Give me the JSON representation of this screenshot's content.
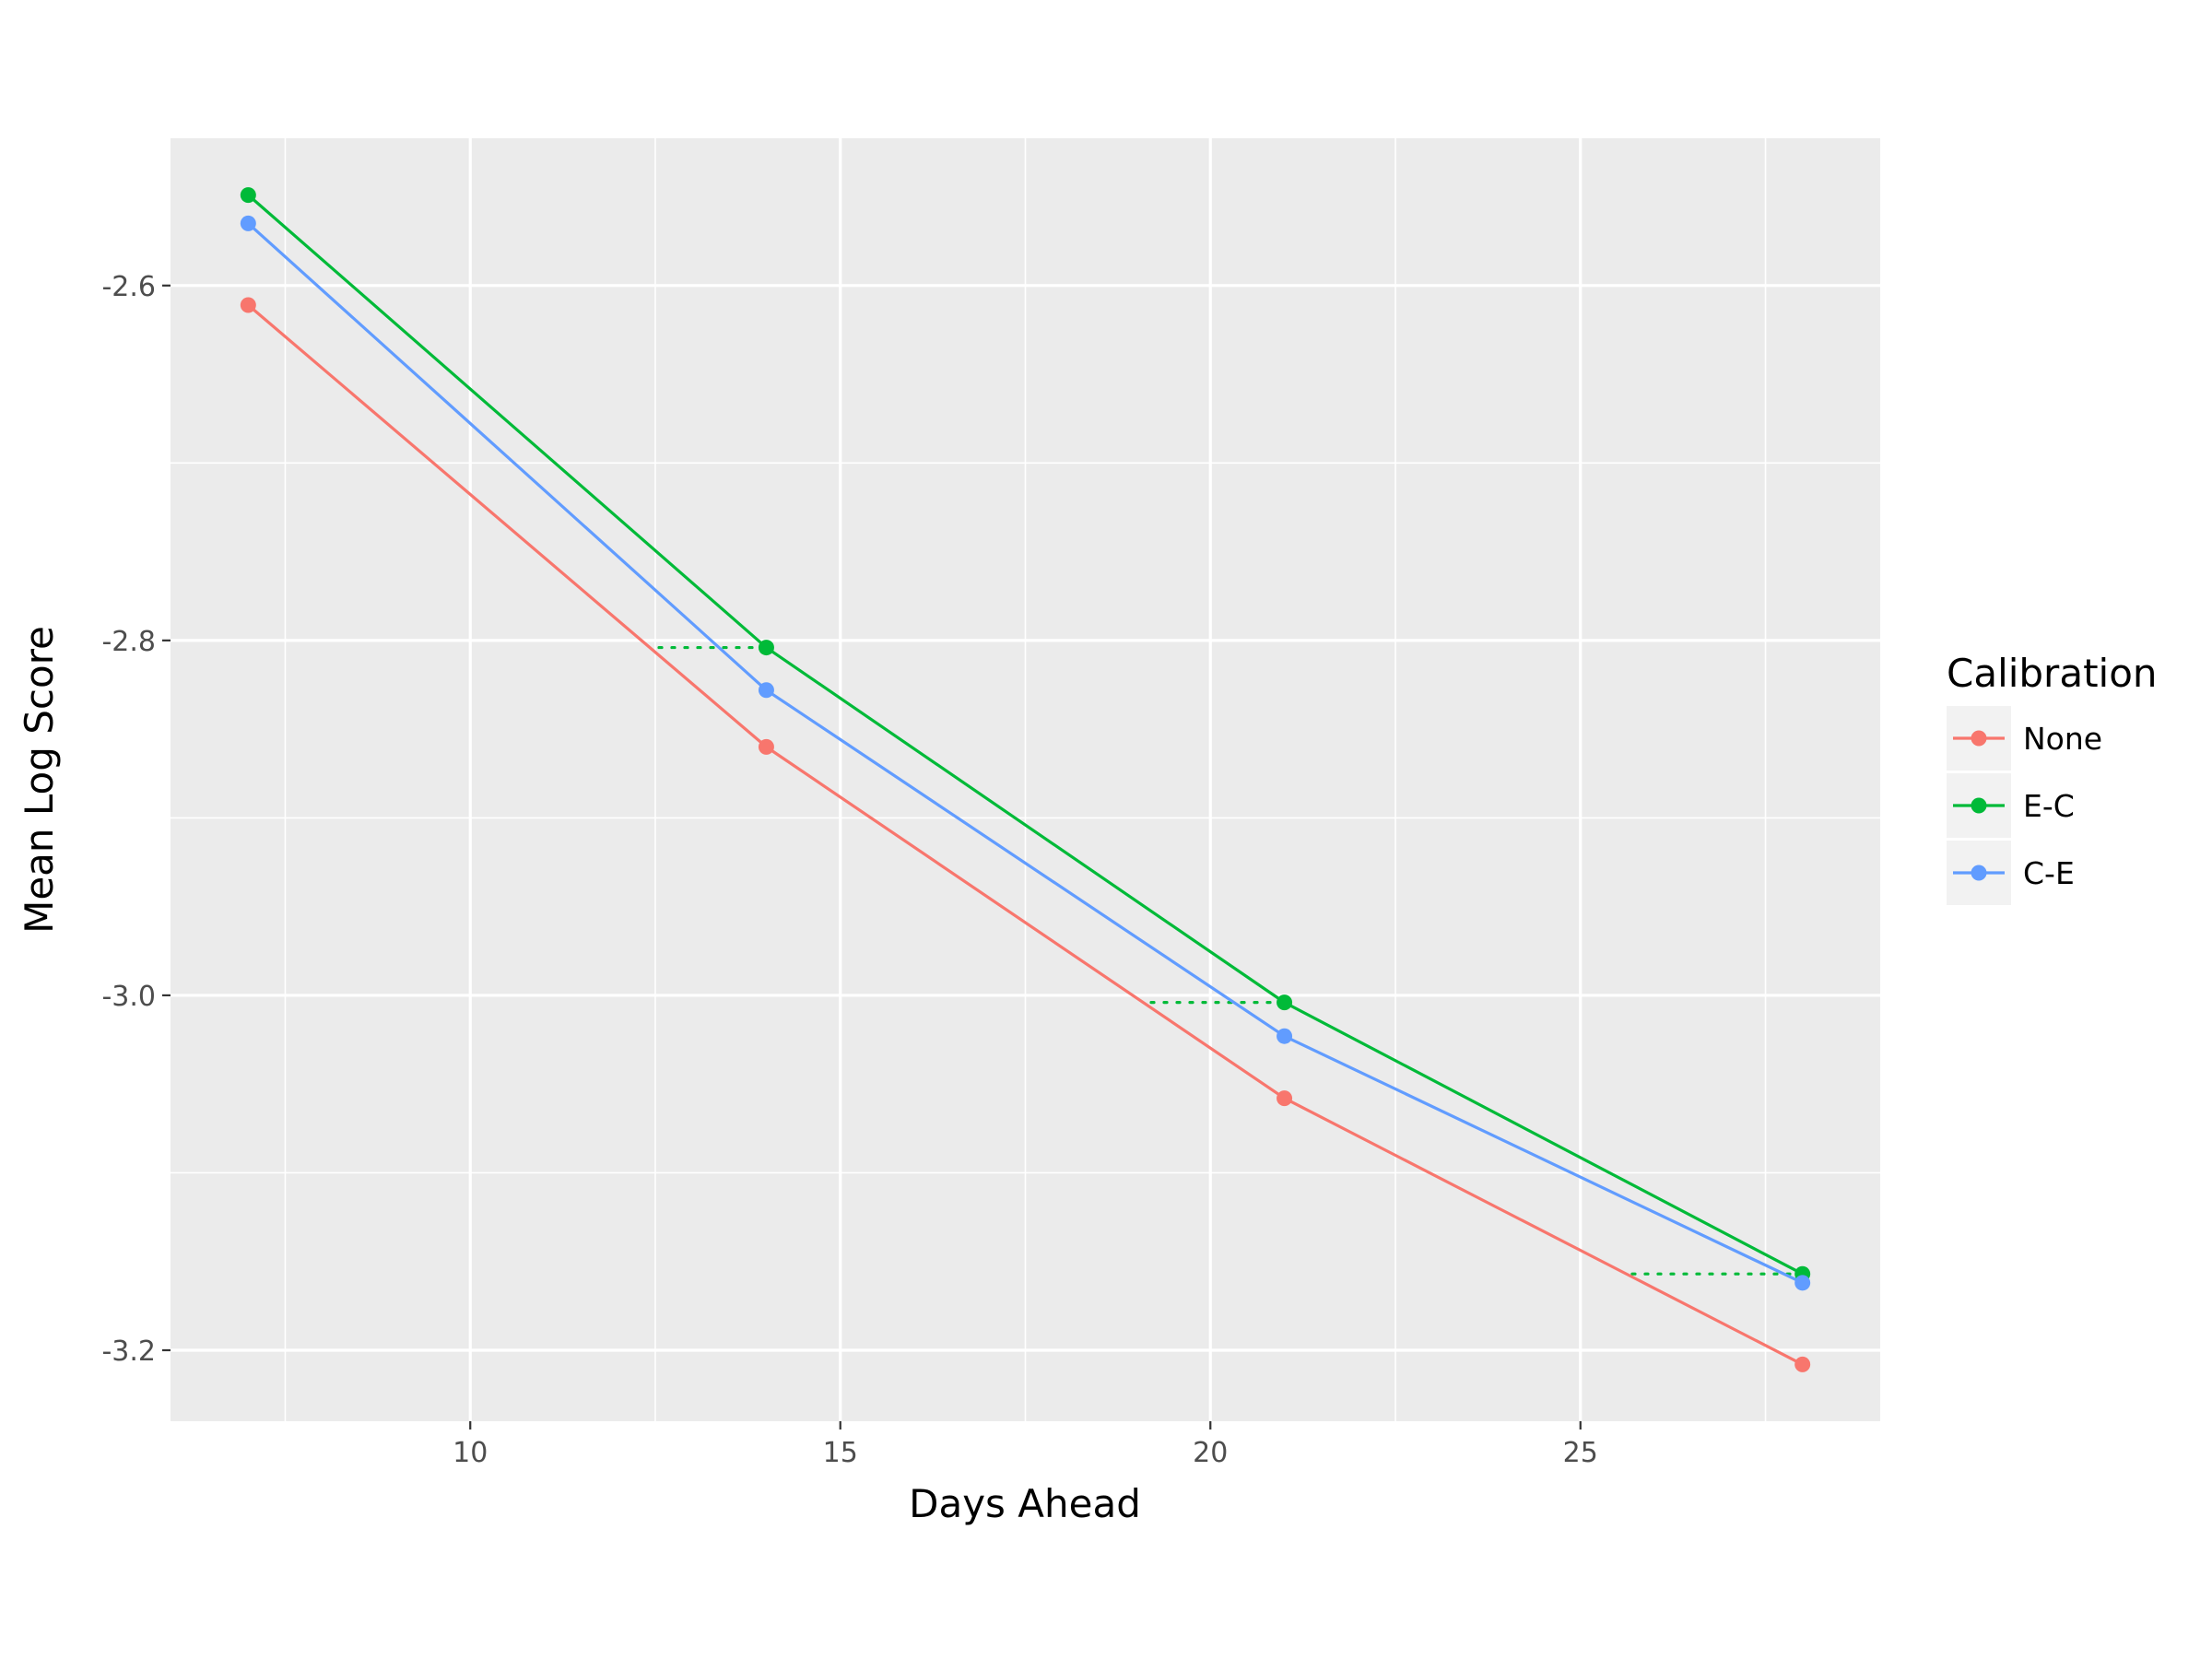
{
  "chart_data": {
    "type": "line",
    "xlabel": "Days Ahead",
    "ylabel": "Mean Log Score",
    "xlim": [
      5.95,
      29.05
    ],
    "ylim": [
      -3.24,
      -2.517
    ],
    "x": [
      7,
      14,
      21,
      28
    ],
    "x_ticks": [
      10,
      15,
      20,
      25
    ],
    "x_tick_labels": [
      "10",
      "15",
      "20",
      "25"
    ],
    "y_ticks": [
      -2.6,
      -2.8,
      -3.0,
      -3.2
    ],
    "y_tick_labels": [
      "-2.6",
      "-2.8",
      "-3.0",
      "-3.2"
    ],
    "grid": true,
    "legend_title": "Calibration",
    "legend_position": "right",
    "series": [
      {
        "name": "None",
        "color": "#F8766D",
        "values": [
          -2.611,
          -2.86,
          -3.058,
          -3.208
        ]
      },
      {
        "name": "E-C",
        "color": "#00BA38",
        "values": [
          -2.549,
          -2.804,
          -3.004,
          -3.157
        ]
      },
      {
        "name": "C-E",
        "color": "#619CFF",
        "values": [
          -2.565,
          -2.828,
          -3.023,
          -3.162
        ]
      }
    ],
    "reference_segments": {
      "color": "#00BA38",
      "style": "dotted",
      "items": [
        {
          "y": -2.804,
          "x": [
            12.55,
            14
          ]
        },
        {
          "y": -3.004,
          "x": [
            19.2,
            21
          ]
        },
        {
          "y": -3.157,
          "x": [
            25.7,
            28
          ]
        }
      ]
    }
  }
}
